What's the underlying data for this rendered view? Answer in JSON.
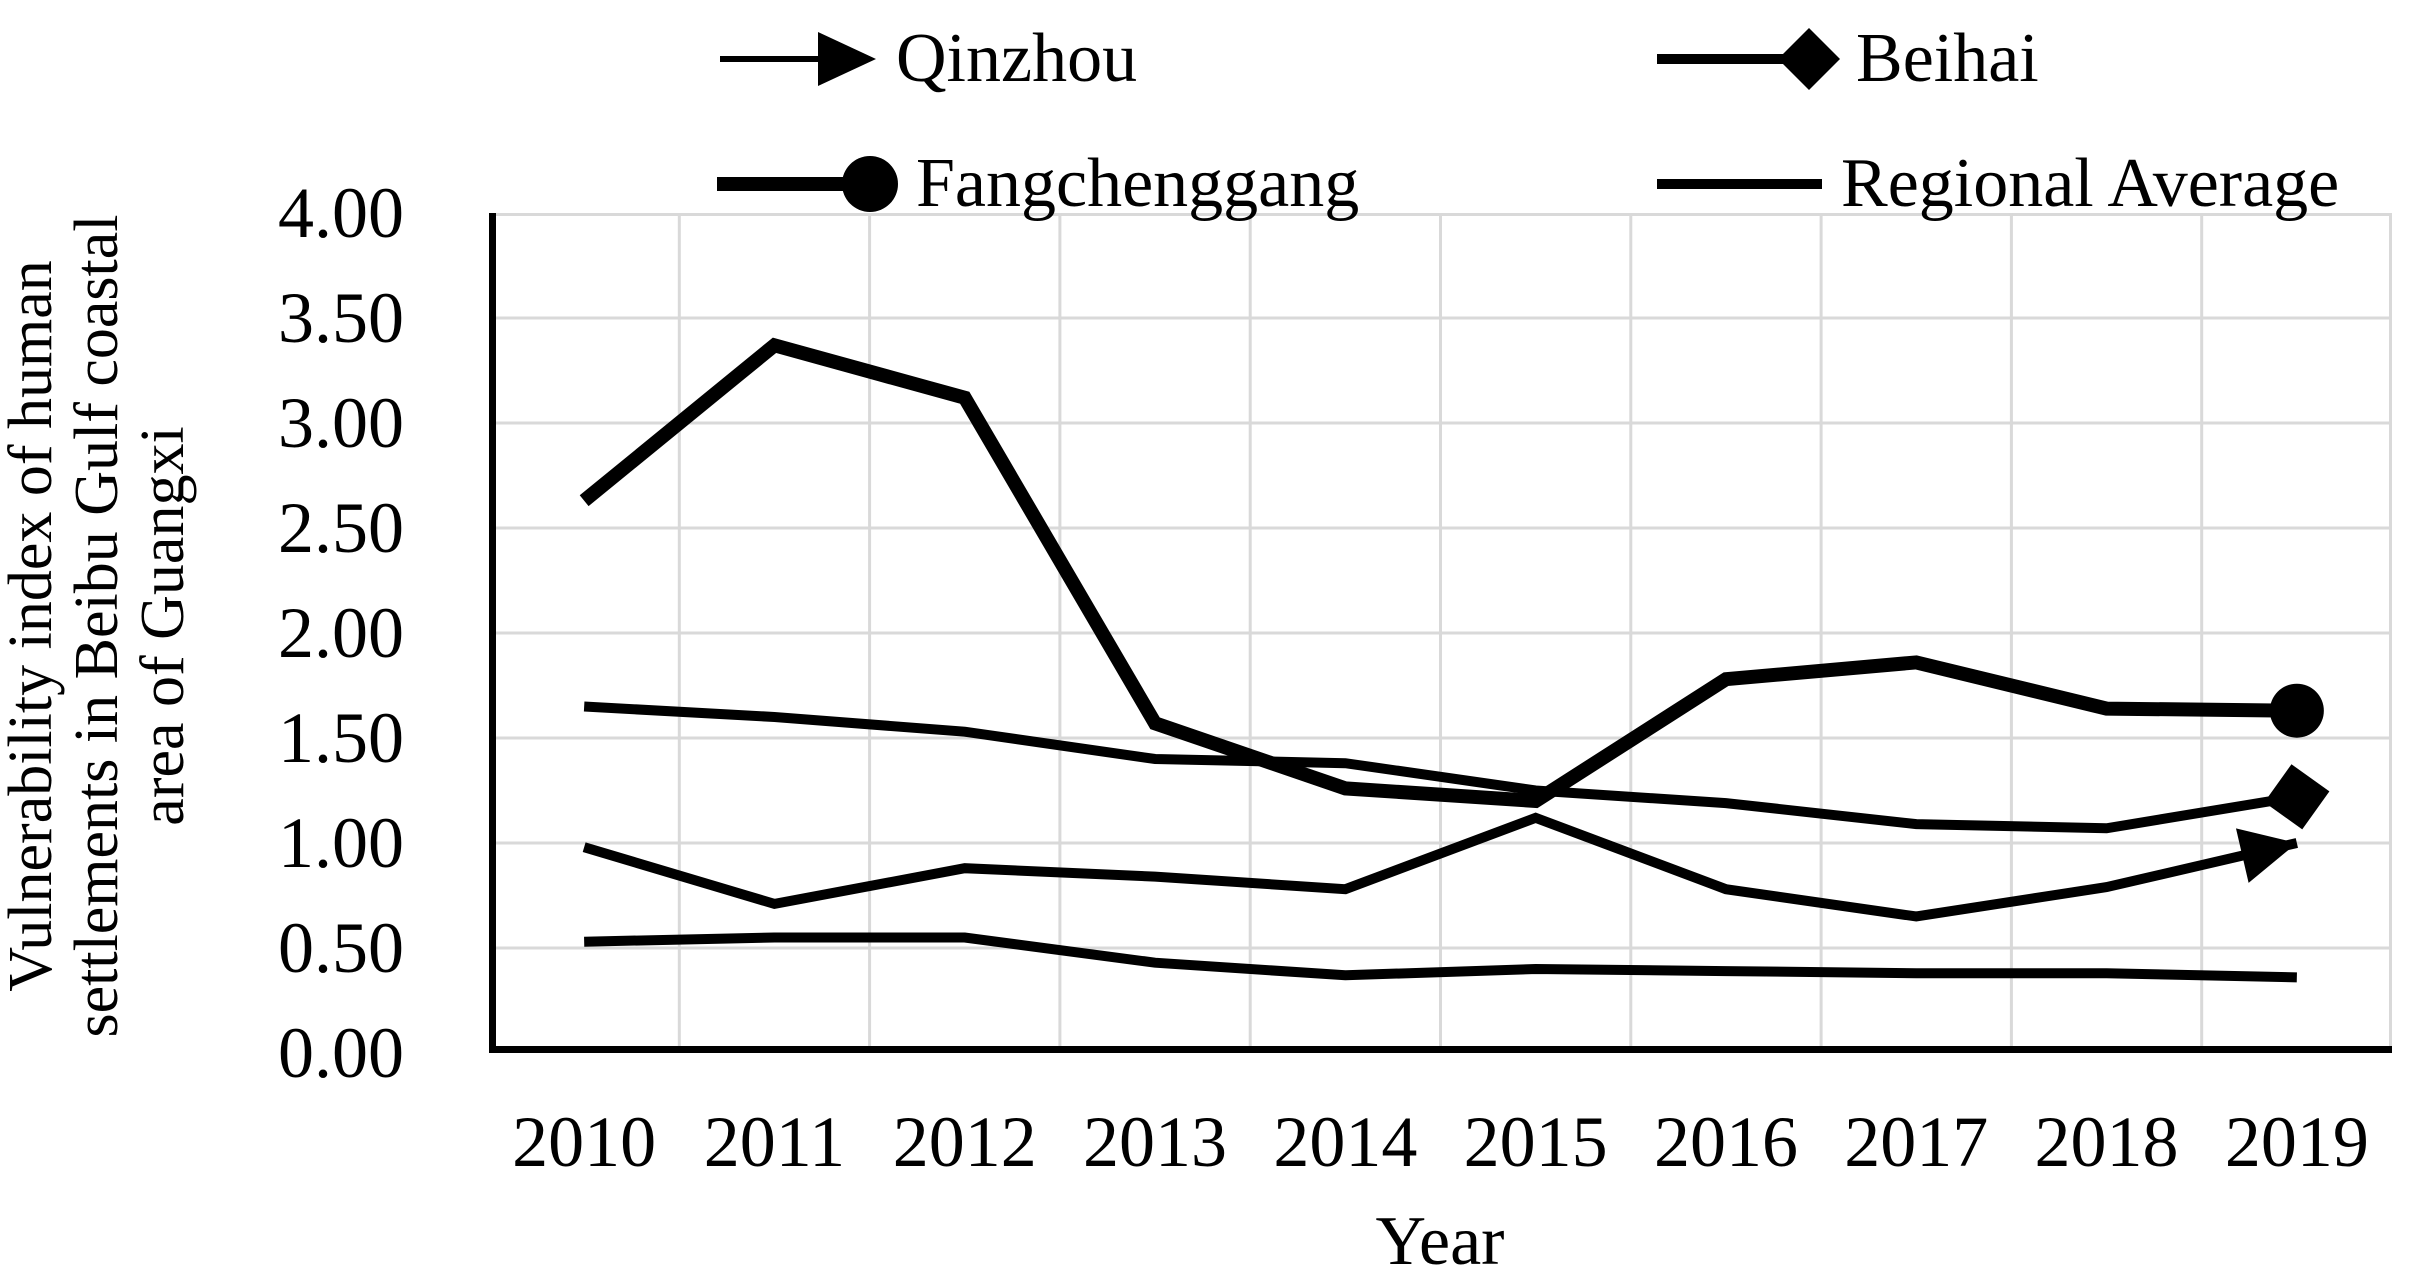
{
  "figure": {
    "y_axis_title_lines": [
      "Vulnerability index of human",
      "settlements in Beibu Gulf coastal",
      "area of Guangxi"
    ],
    "x_axis_title": "Year"
  },
  "chart_data": {
    "type": "line",
    "title": "",
    "xlabel": "Year",
    "ylabel": "Vulnerability index of human settlements in Beibu Gulf coastal area of Guangxi",
    "x": [
      2010,
      2011,
      2012,
      2013,
      2014,
      2015,
      2016,
      2017,
      2018,
      2019
    ],
    "ylim": [
      0,
      4
    ],
    "ytick_step": 0.5,
    "y_tick_labels": [
      "4.00",
      "3.50",
      "3.00",
      "2.50",
      "2.00",
      "1.50",
      "1.00",
      "0.50",
      "0.00"
    ],
    "grid": true,
    "legend_position": "top",
    "series": [
      {
        "name": "Qinzhou",
        "marker": "arrow",
        "line_width": 10,
        "values": [
          0.98,
          0.71,
          0.88,
          0.84,
          0.78,
          1.12,
          0.78,
          0.65,
          0.79,
          1.0
        ]
      },
      {
        "name": "Beihai",
        "marker": "diamond",
        "line_width": 10,
        "values": [
          1.65,
          1.6,
          1.53,
          1.4,
          1.38,
          1.25,
          1.19,
          1.09,
          1.07,
          1.22
        ]
      },
      {
        "name": "Fangchenggang",
        "marker": "circle",
        "line_width": 14,
        "values": [
          2.63,
          3.37,
          3.12,
          1.57,
          1.26,
          1.2,
          1.78,
          1.86,
          1.64,
          1.63
        ]
      },
      {
        "name": "Regional Average",
        "marker": "none",
        "line_width": 10,
        "values": [
          0.53,
          0.55,
          0.55,
          0.43,
          0.37,
          0.4,
          0.39,
          0.38,
          0.38,
          0.36
        ]
      }
    ],
    "colors": {
      "line": "#000000",
      "grid": "#d9d9d9",
      "axis": "#000000",
      "text": "#000000",
      "background": "#ffffff"
    }
  }
}
